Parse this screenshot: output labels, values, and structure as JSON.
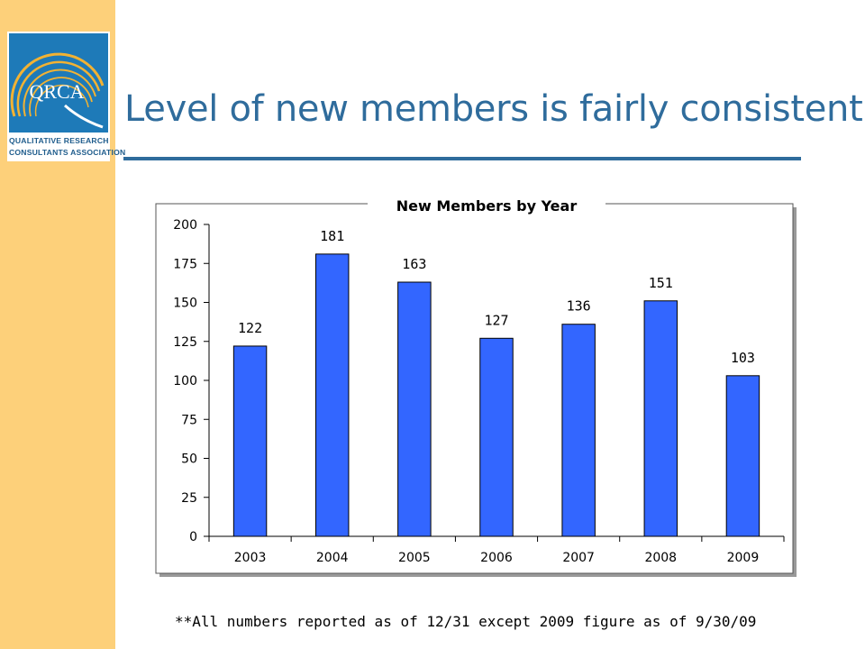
{
  "page": {
    "title": "Level of new members is fairly consistent",
    "footnote": "**All numbers reported as of 12/31 except 2009 figure as of 9/30/09"
  },
  "logo": {
    "mark_text": "QRCA",
    "line1": "QUALITATIVE RESEARCH",
    "line2": "CONSULTANTS ASSOCIATION"
  },
  "colors": {
    "sidebar": "#fdd07a",
    "title": "#2f6c9c",
    "bar": "#3366ff",
    "logo_blue": "#1e7ab8",
    "logo_gold": "#f2b233"
  },
  "chart_data": {
    "type": "bar",
    "title": "New Members by Year",
    "categories": [
      "2003",
      "2004",
      "2005",
      "2006",
      "2007",
      "2008",
      "2009"
    ],
    "values": [
      122,
      181,
      163,
      127,
      136,
      151,
      103
    ],
    "ylim": [
      0,
      200
    ],
    "yticks": [
      0,
      25,
      50,
      75,
      100,
      125,
      150,
      175,
      200
    ],
    "xlabel": "",
    "ylabel": "",
    "grid": false,
    "legend": "none",
    "data_labels": true
  }
}
